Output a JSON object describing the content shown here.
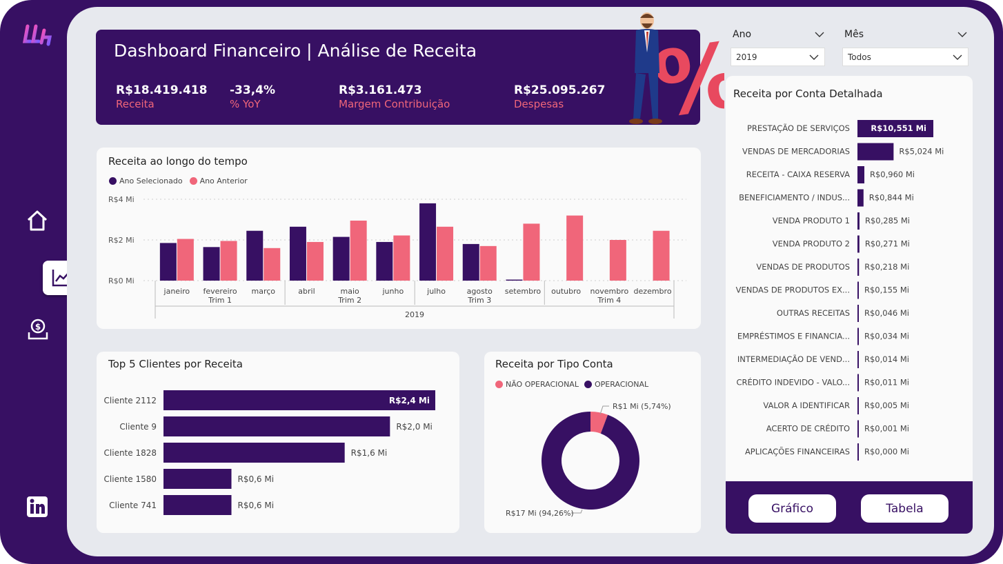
{
  "header": {
    "title": "Dashboard Financeiro | Análise de Receita",
    "kpis": [
      {
        "value": "R$18.419.418",
        "label": "Receita"
      },
      {
        "value": "-33,4%",
        "label": "% YoY"
      },
      {
        "value": "R$3.161.473",
        "label": "Margem Contribuição"
      },
      {
        "value": "R$25.095.267",
        "label": "Despesas"
      }
    ]
  },
  "filters": {
    "ano": {
      "label": "Ano",
      "value": "2019"
    },
    "mes": {
      "label": "Mês",
      "value": "Todos"
    }
  },
  "nav": {
    "icons": [
      "logo-icon",
      "home-icon",
      "chart-icon",
      "money-icon",
      "linkedin-icon"
    ]
  },
  "colors": {
    "primary": "#371063",
    "accent": "#f0667a"
  },
  "buttons": {
    "grafico": "Gráfico",
    "tabela": "Tabela"
  },
  "receita_tempo": {
    "title": "Receita ao longo do tempo",
    "legend": [
      "Ano Selecionado",
      "Ano Anterior"
    ],
    "year_label": "2019"
  },
  "top_clientes": {
    "title": "Top 5 Clientes por Receita"
  },
  "tipo_conta": {
    "title": "Receita por Tipo Conta",
    "legend": [
      "NÃO OPERACIONAL",
      "OPERACIONAL"
    ]
  },
  "conta_detalhada": {
    "title": "Receita por Conta Detalhada"
  },
  "chart_data": [
    {
      "type": "bar",
      "title": "Receita ao longo do tempo",
      "categories": [
        "janeiro",
        "fevereiro",
        "março",
        "abril",
        "maio",
        "junho",
        "julho",
        "agosto",
        "setembro",
        "outubro",
        "novembro",
        "dezembro"
      ],
      "quarters": [
        "Trim 1",
        "Trim 2",
        "Trim 3",
        "Trim 4"
      ],
      "series": [
        {
          "name": "Ano Selecionado",
          "color": "#371063",
          "values": [
            1.85,
            1.65,
            2.45,
            2.65,
            2.15,
            1.9,
            3.8,
            1.8,
            0.05,
            null,
            null,
            null
          ]
        },
        {
          "name": "Ano Anterior",
          "color": "#f0667a",
          "values": [
            2.05,
            1.95,
            1.6,
            1.9,
            2.95,
            2.22,
            2.65,
            1.7,
            2.8,
            3.2,
            2.0,
            2.45
          ]
        }
      ],
      "yticks": [
        "R$0 Mi",
        "R$2 Mi",
        "R$4 Mi"
      ],
      "ylim": [
        0,
        4
      ]
    },
    {
      "type": "bar",
      "title": "Top 5 Clientes por Receita",
      "categories": [
        "Cliente 2112",
        "Cliente 9",
        "Cliente 1828",
        "Cliente 1580",
        "Cliente 741"
      ],
      "values": [
        2.4,
        2.0,
        1.6,
        0.6,
        0.6
      ],
      "labels": [
        "R$2,4 Mi",
        "R$2,0 Mi",
        "R$1,6 Mi",
        "R$0,6 Mi",
        "R$0,6 Mi"
      ]
    },
    {
      "type": "pie",
      "title": "Receita por Tipo Conta",
      "categories": [
        "NÃO OPERACIONAL",
        "OPERACIONAL"
      ],
      "values": [
        5.74,
        94.26
      ],
      "labels": [
        "R$1 Mi (5,74%)",
        "R$17 Mi (94,26%)"
      ]
    },
    {
      "type": "bar",
      "title": "Receita por Conta Detalhada",
      "categories": [
        "PRESTAÇÃO DE SERVIÇOS",
        "VENDAS DE MERCADORIAS",
        "RECEITA - CAIXA RESERVA",
        "BENEFICIAMENTO / INDUS...",
        "VENDA PRODUTO 1",
        "VENDA PRODUTO 2",
        "VENDAS DE PRODUTOS",
        "VENDAS DE PRODUTOS EX...",
        "OUTRAS RECEITAS",
        "EMPRÉSTIMOS E FINANCIA...",
        "INTERMEDIAÇÃO DE VEND...",
        "CRÉDITO INDEVIDO - VALO...",
        "VALOR A IDENTIFICAR",
        "ACERTO DE CRÉDITO",
        "APLICAÇÕES FINANCEIRAS"
      ],
      "values": [
        10.551,
        5.024,
        0.96,
        0.844,
        0.285,
        0.271,
        0.218,
        0.155,
        0.046,
        0.034,
        0.014,
        0.011,
        0.005,
        0.001,
        0.0
      ],
      "labels": [
        "R$10,551 Mi",
        "R$5,024 Mi",
        "R$0,960 Mi",
        "R$0,844 Mi",
        "R$0,285 Mi",
        "R$0,271 Mi",
        "R$0,218 Mi",
        "R$0,155 Mi",
        "R$0,046 Mi",
        "R$0,034 Mi",
        "R$0,014 Mi",
        "R$0,011 Mi",
        "R$0,005 Mi",
        "R$0,001 Mi",
        "R$0,000 Mi"
      ]
    }
  ]
}
